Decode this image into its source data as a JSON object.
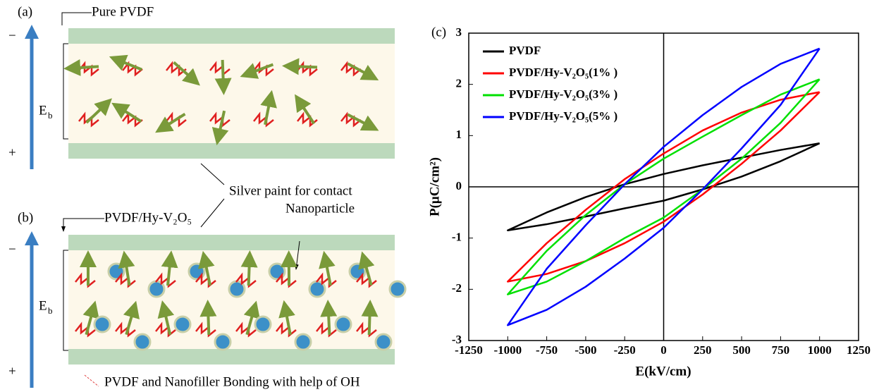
{
  "diagram": {
    "panel_a": {
      "label": "(a)",
      "title": "Pure PVDF"
    },
    "panel_b": {
      "label": "(b)",
      "title": "PVDF/Hy-V₂O₅",
      "particle_label": "Nanoparticle"
    },
    "field": {
      "main": "E",
      "sub": "b",
      "minus": "−",
      "plus": "+"
    },
    "contact_label": "Silver paint for contact",
    "bond_label": "PVDF and Nanofiller Bonding with help of OH"
  },
  "chart_data": {
    "type": "line",
    "panel_label": "(c)",
    "x_label": "E(kV/cm)",
    "y_label": "P(μC/cm²)",
    "xlim": [
      -1250,
      1250
    ],
    "ylim": [
      -3,
      3
    ],
    "xticks": [
      -1250,
      -1000,
      -750,
      -500,
      -250,
      0,
      250,
      500,
      750,
      1000,
      1250
    ],
    "yticks": [
      -3,
      -2,
      -1,
      0,
      1,
      2,
      3
    ],
    "legend": "upper left",
    "series": [
      {
        "name": "PVDF",
        "color": "#000000",
        "x": [
          1000,
          750,
          500,
          250,
          0,
          -250,
          -500,
          -750,
          -1000,
          -750,
          -500,
          -250,
          0,
          250,
          500,
          750,
          1000
        ],
        "values": [
          0.85,
          0.72,
          0.57,
          0.42,
          0.25,
          0.05,
          -0.2,
          -0.5,
          -0.85,
          -0.73,
          -0.58,
          -0.42,
          -0.27,
          -0.05,
          0.2,
          0.5,
          0.85
        ]
      },
      {
        "name": "PVDF/Hy-V₂O₅(1% )",
        "color": "#ff0000",
        "x": [
          1000,
          750,
          500,
          250,
          0,
          -250,
          -500,
          -750,
          -1000,
          -750,
          -500,
          -250,
          0,
          250,
          500,
          750,
          1000
        ],
        "values": [
          1.85,
          1.7,
          1.45,
          1.1,
          0.65,
          0.15,
          -0.45,
          -1.1,
          -1.85,
          -1.7,
          -1.45,
          -1.1,
          -0.68,
          -0.15,
          0.45,
          1.1,
          1.85
        ]
      },
      {
        "name": "PVDF/Hy-V₂O₅(3% )",
        "color": "#00e000",
        "x": [
          1000,
          750,
          500,
          250,
          0,
          -250,
          -500,
          -750,
          -1000,
          -750,
          -500,
          -250,
          0,
          250,
          500,
          750,
          1000
        ],
        "values": [
          2.1,
          1.8,
          1.4,
          0.98,
          0.55,
          0.05,
          -0.55,
          -1.25,
          -2.1,
          -1.85,
          -1.45,
          -1.0,
          -0.6,
          -0.05,
          0.55,
          1.25,
          2.1
        ]
      },
      {
        "name": "PVDF/Hy-V₂O₅(5% )",
        "color": "#0000ff",
        "x": [
          1000,
          750,
          500,
          250,
          0,
          -250,
          -500,
          -750,
          -1000,
          -750,
          -500,
          -250,
          0,
          250,
          500,
          750,
          1000
        ],
        "values": [
          2.7,
          2.4,
          1.95,
          1.4,
          0.78,
          0.05,
          -0.75,
          -1.6,
          -2.7,
          -2.4,
          -1.95,
          -1.4,
          -0.8,
          -0.05,
          0.75,
          1.6,
          2.7
        ]
      }
    ]
  }
}
